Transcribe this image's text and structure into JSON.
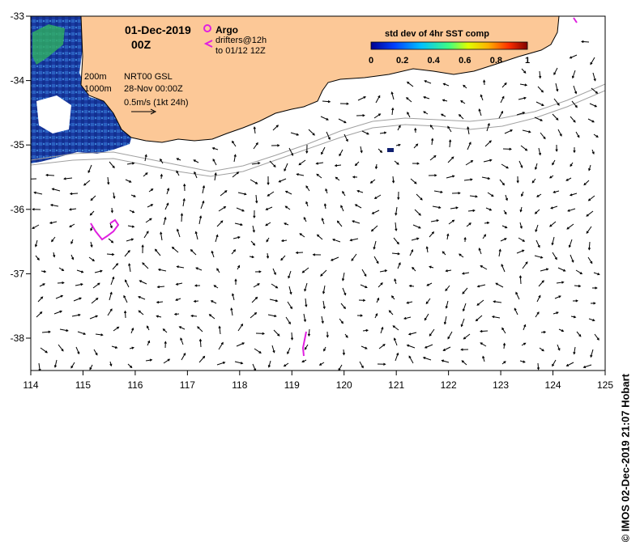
{
  "map": {
    "date": "01-Dec-2019",
    "hour": "00Z",
    "contours": {
      "shallow": "200m",
      "deep": "1000m"
    },
    "altimetry": {
      "product": "NRT00 GSL",
      "date": "28-Nov 00:00Z"
    },
    "current_scale": "0.5m/s (1kt 24h)",
    "legend": {
      "argo": "Argo",
      "drifters": "drifters@12h",
      "drifters_date": "to 01/12 12Z",
      "argo_color": "#e020e0"
    },
    "colorbar": {
      "title": "std dev of 4hr SST comp",
      "ticks": [
        "0",
        "0.2",
        "0.4",
        "0.6",
        "0.8",
        "1"
      ]
    },
    "axes": {
      "x_ticks": [
        "114",
        "115",
        "116",
        "117",
        "118",
        "119",
        "120",
        "121",
        "122",
        "123",
        "124",
        "125"
      ],
      "y_ticks": [
        "-33",
        "-34",
        "-35",
        "-36",
        "-37",
        "-38"
      ]
    },
    "credit": "© IMOS 02-Dec-2019 21:07 Hobart",
    "colors": {
      "land": "#fcc897",
      "arrow": "#000000",
      "drifter": "#e020e0",
      "contour": "#a0a0a0"
    }
  }
}
